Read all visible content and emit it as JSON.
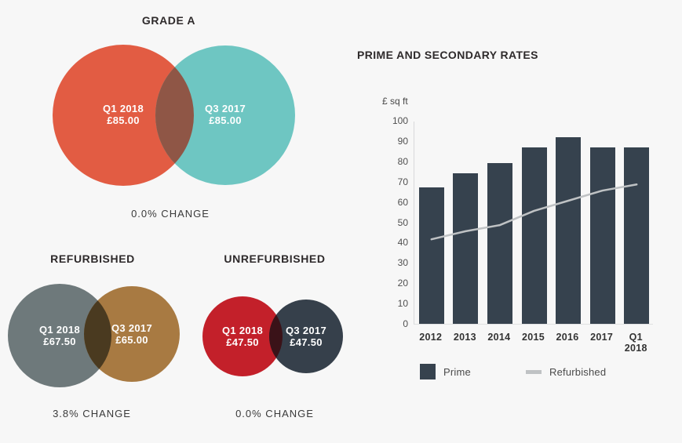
{
  "page": {
    "background": "#f7f7f7"
  },
  "venns": {
    "grade_a": {
      "title": "GRADE A",
      "change": "0.0% CHANGE",
      "left": {
        "period": "Q1 2018",
        "value": "£85.00",
        "color": "#e25c43"
      },
      "right": {
        "period": "Q3 2017",
        "value": "£85.00",
        "color": "#6ec6c2"
      },
      "overlap_color": "#8f5646"
    },
    "refurbished": {
      "title": "REFURBISHED",
      "change": "3.8% CHANGE",
      "left": {
        "period": "Q1 2018",
        "value": "£67.50",
        "color": "#6e797b"
      },
      "right": {
        "period": "Q3 2017",
        "value": "£65.00",
        "color": "#a87a42"
      },
      "overlap_color": "#4a3a20"
    },
    "unrefurbished": {
      "title": "UNREFURBISHED",
      "change": "0.0% CHANGE",
      "left": {
        "period": "Q1 2018",
        "value": "£47.50",
        "color": "#c3202a"
      },
      "right": {
        "period": "Q3 2017",
        "value": "£47.50",
        "color": "#36404b"
      },
      "overlap_color": "#3a1218"
    }
  },
  "chart_data": {
    "type": "bar",
    "title": "PRIME AND SECONDARY RATES",
    "ylabel": "£ sq ft",
    "categories": [
      "2012",
      "2013",
      "2014",
      "2015",
      "2016",
      "2017",
      "Q1 2018"
    ],
    "series": [
      {
        "name": "Prime",
        "type": "bar",
        "color": "#36424e",
        "values": [
          67,
          74,
          79,
          87,
          92,
          87,
          87
        ]
      },
      {
        "name": "Refurbished",
        "type": "line",
        "color": "#bfc2c4",
        "values": [
          42,
          46,
          49,
          56,
          61,
          66,
          69
        ]
      }
    ],
    "ylim": [
      0,
      100
    ],
    "ytick_step": 10,
    "grid": false,
    "legend_position": "bottom"
  }
}
